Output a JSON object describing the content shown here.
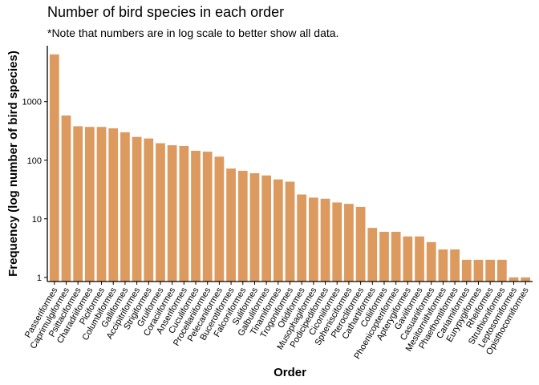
{
  "chart_data": {
    "type": "bar",
    "title": "Number of bird species in each order",
    "subtitle": "*Note that numbers are in log scale to better show all data.",
    "xlabel": "Order",
    "ylabel": "Frequency (log number of bird species)",
    "y_scale": "log10",
    "ylim": [
      0.85,
      9000
    ],
    "y_ticks": [
      1,
      10,
      100,
      1000
    ],
    "y_tick_labels": [
      "1",
      "10",
      "100",
      "1000"
    ],
    "bar_color": "#DC9A5F",
    "grid": false,
    "categories": [
      "Passeriformes",
      "Caprimulgiformes",
      "Psittaciformes",
      "Charadriiformes",
      "Piciformes",
      "Columbiformes",
      "Galliformes",
      "Accipitriformes",
      "Strigiformes",
      "Gruiformes",
      "Coraciiformes",
      "Anseriformes",
      "Cuculiformes",
      "Procellariiformes",
      "Pelecaniformes",
      "Bucerotiformes",
      "Falconiformes",
      "Suliformes",
      "Galbuliformes",
      "Tinamiformes",
      "Trogoniformes",
      "Otidiformes",
      "Musophagiformes",
      "Podicipediformes",
      "Ciconiiformes",
      "Sphenisciformes",
      "Pterocliformes",
      "Cathartiformes",
      "Coliiformes",
      "Phoenicopteriformes",
      "Apterygiformes",
      "Gaviiformes",
      "Casuariiformes",
      "Mesitornithiformes",
      "Phaethontiformes",
      "Cariamiformes",
      "Eurypygiformes",
      "Rheiformes",
      "Struthioniformes",
      "Leptosomiformes",
      "Opisthocomiformes"
    ],
    "values": [
      6400,
      580,
      380,
      370,
      370,
      350,
      300,
      250,
      235,
      195,
      180,
      175,
      145,
      140,
      115,
      72,
      66,
      60,
      55,
      47,
      43,
      26,
      23,
      22,
      19,
      18,
      16,
      7,
      6,
      6,
      5,
      5,
      4,
      3,
      3,
      2,
      2,
      2,
      2,
      1,
      1
    ]
  }
}
